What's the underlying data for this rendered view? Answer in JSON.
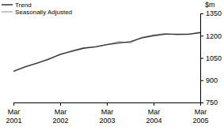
{
  "chart_data": {
    "type": "line",
    "y_label": "$m",
    "categories": [
      "Mar 2001",
      null,
      null,
      null,
      "Mar 2002",
      null,
      null,
      null,
      "Mar 2003",
      null,
      null,
      null,
      "Mar 2004",
      null,
      null,
      null,
      "Mar 2005"
    ],
    "series": [
      {
        "name": "Trend",
        "color": "#333333",
        "values": [
          960,
          990,
          1015,
          1040,
          1075,
          1095,
          1115,
          1125,
          1140,
          1150,
          1160,
          1185,
          1200,
          1210,
          1210,
          1210,
          1220
        ]
      },
      {
        "name": "Seasonally Adjusted",
        "color": "#b0b0b0",
        "values": [
          958,
          992,
          1012,
          1045,
          1070,
          1100,
          1120,
          1122,
          1140,
          1160,
          1150,
          1190,
          1205,
          1215,
          1205,
          1208,
          1225
        ]
      }
    ],
    "ylim": [
      750,
      1350
    ],
    "yticks": [
      750,
      900,
      1050,
      1200,
      1350
    ],
    "legend": "top-left"
  }
}
